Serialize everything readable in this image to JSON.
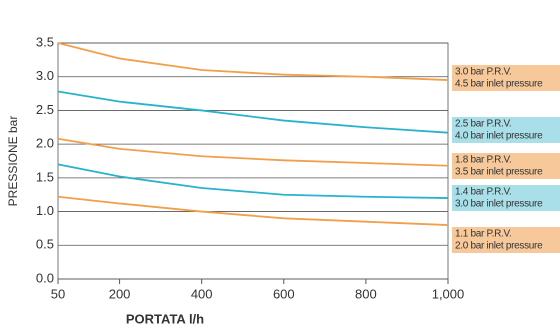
{
  "chart_data": {
    "type": "line",
    "x_label": "PORTATA l/h",
    "y_label": "PRESSIONE bar",
    "x": [
      50,
      200,
      400,
      600,
      800,
      1000
    ],
    "xlim": [
      50,
      1000
    ],
    "xticks": [
      50,
      200,
      400,
      600,
      800,
      {
        "value": 1000,
        "label": "1,000"
      }
    ],
    "ylim": [
      0,
      3.5
    ],
    "yticks": [
      {
        "value": 0,
        "label": "0.0"
      },
      0.5,
      {
        "value": 1,
        "label": "1.0"
      },
      1.5,
      {
        "value": 2,
        "label": "2.0"
      },
      2.5,
      {
        "value": 3,
        "label": "3.0"
      },
      3.5
    ],
    "grid": true,
    "series": [
      {
        "name": "3.0 bar P.R.V.",
        "inlet": "4.5 bar inlet pressure",
        "color": "#f0a04b",
        "label_color": "#f7c99a",
        "values": [
          3.5,
          3.27,
          3.1,
          3.03,
          3.0,
          2.95
        ]
      },
      {
        "name": "2.5 bar P.R.V.",
        "inlet": "4.0 bar inlet pressure",
        "color": "#27b3cc",
        "label_color": "#a9dfe9",
        "values": [
          2.78,
          2.63,
          2.5,
          2.35,
          2.25,
          2.17
        ]
      },
      {
        "name": "1.8 bar P.R.V.",
        "inlet": "3.5 bar inlet pressure",
        "color": "#f0a04b",
        "label_color": "#f7c99a",
        "values": [
          2.08,
          1.93,
          1.82,
          1.76,
          1.72,
          1.68
        ]
      },
      {
        "name": "1.4 bar P.R.V.",
        "inlet": "3.0 bar inlet pressure",
        "color": "#27b3cc",
        "label_color": "#a9dfe9",
        "values": [
          1.7,
          1.52,
          1.35,
          1.25,
          1.22,
          1.2
        ]
      },
      {
        "name": "1.1 bar P.R.V.",
        "inlet": "2.0 bar inlet pressure",
        "color": "#f0a04b",
        "label_color": "#f7c99a",
        "values": [
          1.22,
          1.12,
          1.0,
          0.9,
          0.85,
          0.8
        ]
      }
    ]
  }
}
